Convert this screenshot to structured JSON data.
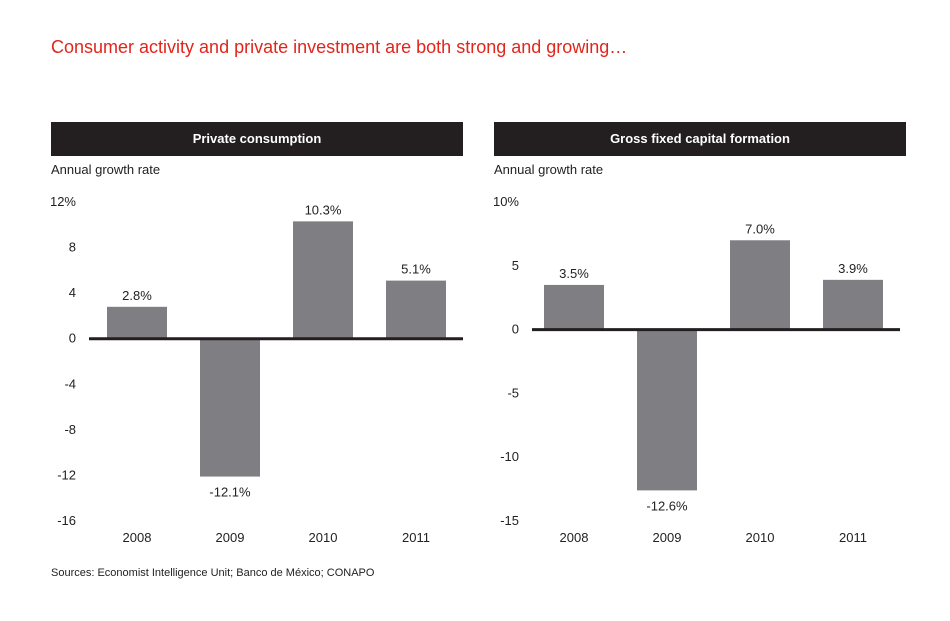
{
  "headline": "Consumer activity and private investment are both strong and growing…",
  "sources": "Sources: Economist Intelligence Unit; Banco de México; CONAPO",
  "colors": {
    "bar": "#7f7f83",
    "header_bg": "#231f20",
    "headline": "#e1251b",
    "axis": "#231f20"
  },
  "chart_data": [
    {
      "type": "bar",
      "title": "Private consumption",
      "ylabel": "Annual growth rate",
      "categories": [
        "2008",
        "2009",
        "2010",
        "2011"
      ],
      "values": [
        2.8,
        -12.1,
        10.3,
        5.1
      ],
      "data_labels": [
        "2.8%",
        "-12.1%",
        "10.3%",
        "5.1%"
      ],
      "ylim": [
        -16,
        12
      ],
      "yticks": [
        12,
        8,
        4,
        0,
        -4,
        -8,
        -12,
        -16
      ],
      "ytick_labels": [
        "12%",
        "8",
        "4",
        "0",
        "-4",
        "-8",
        "-12",
        "-16"
      ],
      "grid": false
    },
    {
      "type": "bar",
      "title": "Gross fixed capital formation",
      "ylabel": "Annual growth rate",
      "categories": [
        "2008",
        "2009",
        "2010",
        "2011"
      ],
      "values": [
        3.5,
        -12.6,
        7.0,
        3.9
      ],
      "data_labels": [
        "3.5%",
        "-12.6%",
        "7.0%",
        "3.9%"
      ],
      "ylim": [
        -15,
        10
      ],
      "yticks": [
        10,
        5,
        0,
        -5,
        -10,
        -15
      ],
      "ytick_labels": [
        "10%",
        "5",
        "0",
        "-5",
        "-10",
        "-15"
      ],
      "grid": false
    }
  ]
}
